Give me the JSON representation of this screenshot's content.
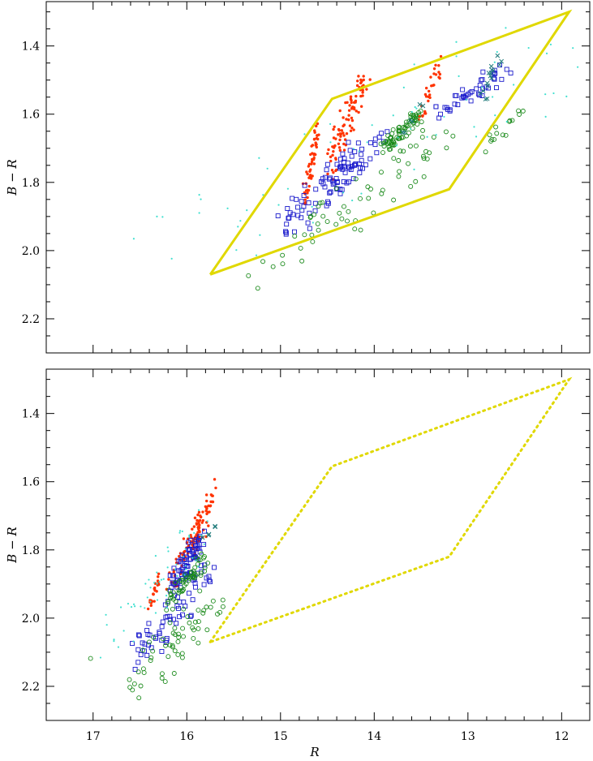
{
  "colors": {
    "region_outline": "#e0d800",
    "red_series": "#ff3300",
    "blue_series": "#1a1acc",
    "green_series": "#1a8a1a",
    "cyan_series": "#40e0d0",
    "teal_series": "#1f7a7a"
  },
  "chart_data": [
    {
      "type": "scatter",
      "panel": "top",
      "xlabel": "",
      "ylabel": "B − R",
      "xlim": [
        17.5,
        11.7
      ],
      "ylim": [
        2.3,
        1.27
      ],
      "y_inverted": true,
      "x_inverted": true,
      "yticks": [
        "1.4",
        "1.6",
        "1.8",
        "2.0",
        "2.2"
      ],
      "xtick_labels_shown": false,
      "region": {
        "style": "solid",
        "vertices": [
          [
            15.75,
            2.07
          ],
          [
            14.45,
            1.555
          ],
          [
            11.92,
            1.3
          ],
          [
            13.2,
            1.82
          ],
          [
            15.75,
            2.07
          ]
        ]
      },
      "series": [
        {
          "marker": "filled-dot",
          "color": "red",
          "clusters": [
            {
              "x": [
                14.75,
                14.6
              ],
              "y": [
                1.85,
                1.65
              ],
              "n": 55
            },
            {
              "x": [
                14.5,
                14.1
              ],
              "y": [
                1.75,
                1.5
              ],
              "n": 95
            },
            {
              "x": [
                13.5,
                13.3
              ],
              "y": [
                1.62,
                1.45
              ],
              "n": 30
            }
          ]
        },
        {
          "marker": "open-square",
          "color": "blue",
          "clusters": [
            {
              "x": [
                15.0,
                14.2
              ],
              "y": [
                1.95,
                1.7
              ],
              "n": 60
            },
            {
              "x": [
                14.5,
                13.9
              ],
              "y": [
                1.85,
                1.65
              ],
              "n": 40
            },
            {
              "x": [
                13.3,
                12.6
              ],
              "y": [
                1.6,
                1.47
              ],
              "n": 45
            }
          ]
        },
        {
          "marker": "open-circle",
          "color": "green",
          "clusters": [
            {
              "x": [
                13.9,
                13.5
              ],
              "y": [
                1.7,
                1.6
              ],
              "n": 70
            },
            {
              "x": [
                14.6,
                13.3
              ],
              "y": [
                1.95,
                1.65
              ],
              "n": 55
            },
            {
              "x": [
                15.3,
                14.5
              ],
              "y": [
                2.12,
                1.9
              ],
              "n": 12
            },
            {
              "x": [
                12.8,
                12.4
              ],
              "y": [
                1.7,
                1.58
              ],
              "n": 15
            }
          ]
        },
        {
          "marker": "small-dot",
          "color": "cyan",
          "clusters": [
            {
              "x": [
                16.2,
                11.9
              ],
              "y": [
                2.0,
                1.4
              ],
              "n": 70
            }
          ]
        },
        {
          "marker": "cross",
          "color": "teal",
          "clusters": [
            {
              "x": [
                12.85,
                12.65
              ],
              "y": [
                1.55,
                1.43
              ],
              "n": 16
            },
            {
              "x": [
                13.7,
                13.5
              ],
              "y": [
                1.67,
                1.58
              ],
              "n": 6
            }
          ]
        }
      ]
    },
    {
      "type": "scatter",
      "panel": "bottom",
      "xlabel": "R",
      "ylabel": "B − R",
      "xlim": [
        17.5,
        11.7
      ],
      "ylim": [
        2.3,
        1.27
      ],
      "y_inverted": true,
      "x_inverted": true,
      "xticks": [
        "17",
        "16",
        "15",
        "14",
        "13",
        "12"
      ],
      "yticks": [
        "1.4",
        "1.6",
        "1.8",
        "2.0",
        "2.2"
      ],
      "region": {
        "style": "dotted",
        "vertices": [
          [
            15.75,
            2.07
          ],
          [
            14.45,
            1.555
          ],
          [
            11.92,
            1.3
          ],
          [
            13.2,
            1.82
          ],
          [
            15.75,
            2.07
          ]
        ]
      },
      "series": [
        {
          "marker": "filled-dot",
          "color": "red",
          "clusters": [
            {
              "x": [
                16.4,
                16.3
              ],
              "y": [
                1.97,
                1.88
              ],
              "n": 25
            },
            {
              "x": [
                16.2,
                15.8
              ],
              "y": [
                1.9,
                1.72
              ],
              "n": 70
            },
            {
              "x": [
                15.95,
                15.7
              ],
              "y": [
                1.78,
                1.62
              ],
              "n": 45
            }
          ]
        },
        {
          "marker": "open-square",
          "color": "blue",
          "clusters": [
            {
              "x": [
                16.15,
                15.85
              ],
              "y": [
                1.9,
                1.76
              ],
              "n": 60
            },
            {
              "x": [
                16.5,
                15.8
              ],
              "y": [
                2.12,
                1.85
              ],
              "n": 75
            }
          ]
        },
        {
          "marker": "open-circle",
          "color": "green",
          "clusters": [
            {
              "x": [
                16.2,
                15.8
              ],
              "y": [
                1.96,
                1.83
              ],
              "n": 55
            },
            {
              "x": [
                16.6,
                15.7
              ],
              "y": [
                2.22,
                1.95
              ],
              "n": 60
            },
            {
              "x": [
                17.05,
                16.95
              ],
              "y": [
                2.12,
                2.1
              ],
              "n": 1
            }
          ]
        },
        {
          "marker": "small-dot",
          "color": "cyan",
          "clusters": [
            {
              "x": [
                16.8,
                15.8
              ],
              "y": [
                2.08,
                1.72
              ],
              "n": 55
            }
          ]
        },
        {
          "marker": "cross",
          "color": "teal",
          "clusters": [
            {
              "x": [
                15.85,
                15.7
              ],
              "y": [
                1.77,
                1.73
              ],
              "n": 5
            }
          ]
        }
      ]
    }
  ]
}
